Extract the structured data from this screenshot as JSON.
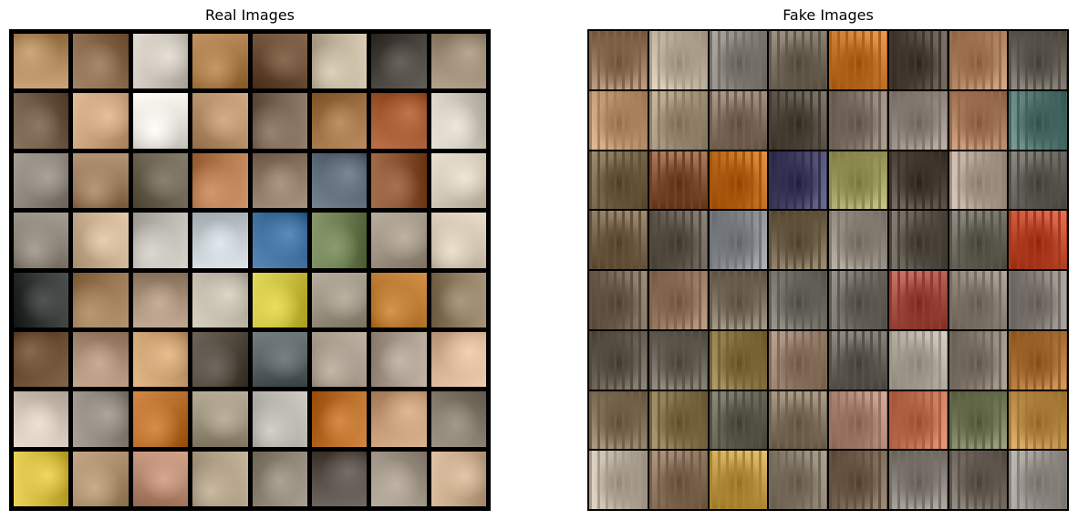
{
  "real_panel": {
    "title": "Real Images"
  },
  "fake_panel": {
    "title": "Fake Images"
  },
  "grid": {
    "rows": 8,
    "cols": 8
  },
  "colors": {
    "real": [
      "#b08a5e",
      "#8a6a4c",
      "#c9c2b8",
      "#a77a48",
      "#6b4e35",
      "#bfb39c",
      "#4a453f",
      "#9a8a74",
      "#6e5a46",
      "#c8a27a",
      "#e6e3dc",
      "#b69068",
      "#7a6655",
      "#a07346",
      "#a2582e",
      "#cfc9bd",
      "#8d857c",
      "#9a7b5c",
      "#6e6452",
      "#b57b4e",
      "#8d7966",
      "#5c6a78",
      "#8a5432",
      "#d2c8b8",
      "#8c8478",
      "#c8b090",
      "#bdbab3",
      "#c3cbd0",
      "#3e6e9e",
      "#6d7e52",
      "#a09484",
      "#d0c4b0",
      "#353737",
      "#9c7a55",
      "#a8907a",
      "#c0b8a8",
      "#cbc040",
      "#9d9483",
      "#b8782f",
      "#8e7c60",
      "#6a4c33",
      "#ab8e76",
      "#caa071",
      "#534a40",
      "#5a6466",
      "#a69a8b",
      "#a89a8c",
      "#d5b394",
      "#cfc4b6",
      "#90887f",
      "#b96f2c",
      "#9e947f",
      "#b6b3ad",
      "#b86e28",
      "#c39a76",
      "#847b6c",
      "#d2b93f",
      "#ab8f6c",
      "#b88a72",
      "#ad9d85",
      "#8f8677",
      "#595049",
      "#a09586",
      "#c6a98a"
    ],
    "fake": [
      "#9a7c62",
      "#c3b6a2",
      "#8e8a82",
      "#7c7264",
      "#c77a30",
      "#5a5048",
      "#b48866",
      "#6f6a62",
      "#c29a74",
      "#a89880",
      "#8a7868",
      "#5e564a",
      "#8a7c70",
      "#9a8f86",
      "#b08464",
      "#5b7d78",
      "#7a6a4f",
      "#8a5a3c",
      "#c06f23",
      "#4b4a6a",
      "#a4a266",
      "#574d44",
      "#b7a798",
      "#6c6862",
      "#7d6a52",
      "#6b6257",
      "#8c8f93",
      "#7a6b55",
      "#9a9286",
      "#645d54",
      "#706e62",
      "#c25035",
      "#7a6b5a",
      "#9c7d66",
      "#837868",
      "#7a776e",
      "#77726a",
      "#a85448",
      "#8f8679",
      "#8d8680",
      "#6d6557",
      "#746d62",
      "#8f7d4e",
      "#9a8470",
      "#6e6a62",
      "#b7aea2",
      "#8c8276",
      "#b1783f",
      "#8a7a62",
      "#8c7a55",
      "#6c6a5a",
      "#8a7c68",
      "#b28a7a",
      "#c7785a",
      "#7b8060",
      "#c0924f",
      "#c0b4a4",
      "#8e7660",
      "#c39e4c",
      "#8c8170",
      "#7b6b58",
      "#8f8880",
      "#766d64",
      "#9f9a94"
    ]
  }
}
